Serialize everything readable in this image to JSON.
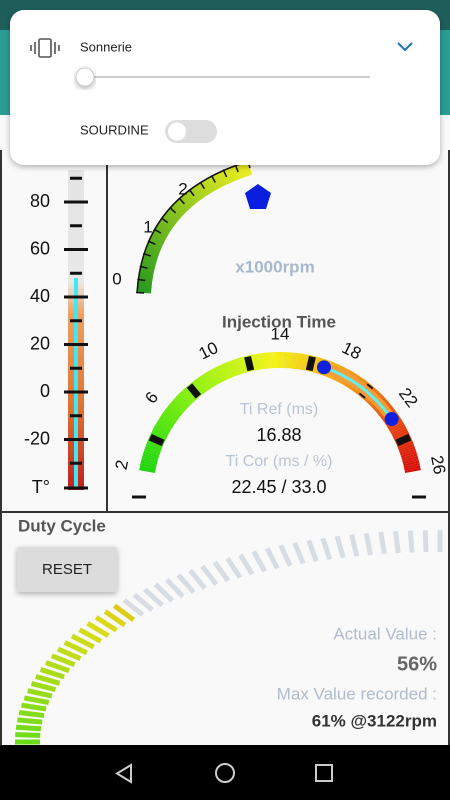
{
  "volume_panel": {
    "label": "Sonnerie",
    "mute_label": "SOURDINE"
  },
  "temperature": {
    "ticks": [
      80,
      60,
      40,
      20,
      0,
      -20
    ],
    "unit": "T°"
  },
  "rpm": {
    "ticks": [
      0,
      1,
      2
    ],
    "unit": "x1000rpm"
  },
  "injection": {
    "title": "Injection Time",
    "ticks": [
      2,
      6,
      10,
      14,
      18,
      22,
      26
    ],
    "ti_ref_label": "Ti Ref (ms)",
    "ti_ref_value": "16.88",
    "ti_cor_label": "Ti Cor (ms / %)",
    "ti_cor_value": "22.45 / 33.0"
  },
  "duty_cycle": {
    "title": "Duty Cycle",
    "reset_button": "RESET",
    "actual_label": "Actual Value :",
    "actual_value": "56%",
    "max_label": "Max Value recorded :",
    "max_value": "61% @3122rpm"
  }
}
